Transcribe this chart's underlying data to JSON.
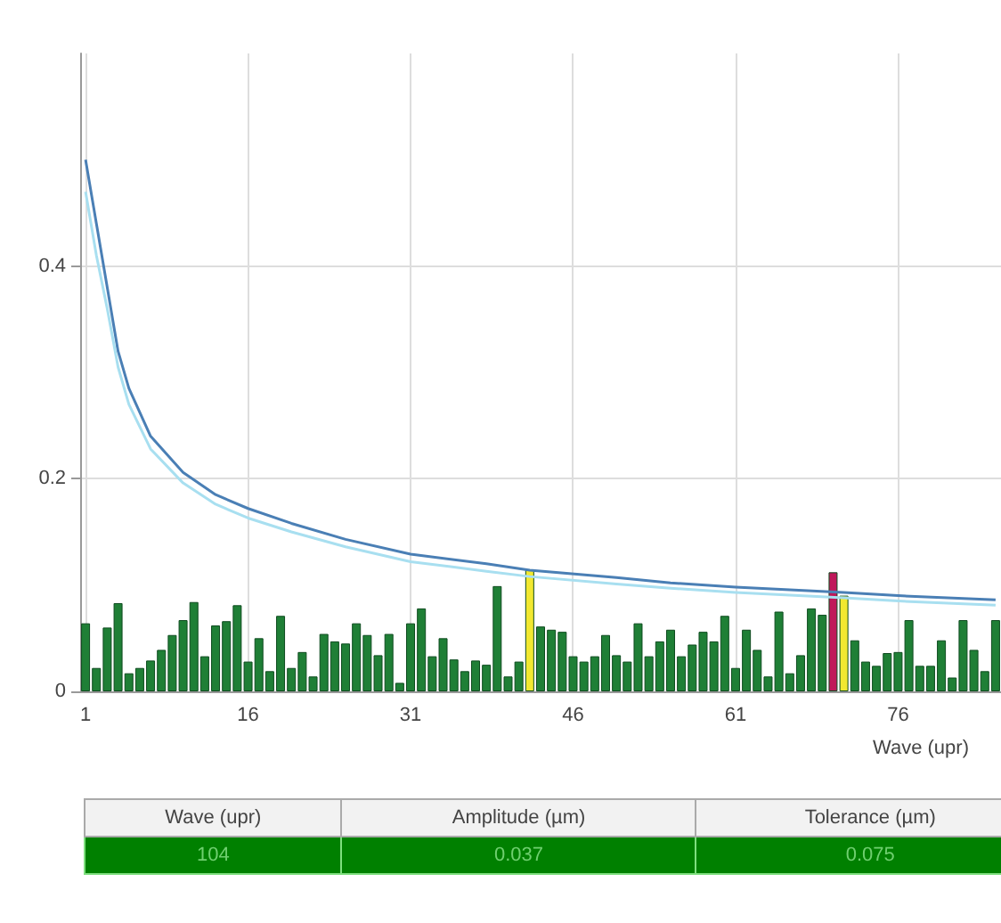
{
  "chart_data": {
    "type": "bar",
    "xlabel": "Wave (upr)",
    "x": [
      1,
      2,
      3,
      4,
      5,
      6,
      7,
      8,
      9,
      10,
      11,
      12,
      13,
      14,
      15,
      16,
      17,
      18,
      19,
      20,
      21,
      22,
      23,
      24,
      25,
      26,
      27,
      28,
      29,
      30,
      31,
      32,
      33,
      34,
      35,
      36,
      37,
      38,
      39,
      40,
      41,
      42,
      43,
      44,
      45,
      46,
      47,
      48,
      49,
      50,
      51,
      52,
      53,
      54,
      55,
      56,
      57,
      58,
      59,
      60,
      61,
      62,
      63,
      64,
      65,
      66,
      67,
      68,
      69,
      70,
      71,
      72,
      73,
      74,
      75,
      76,
      77,
      78,
      79,
      80,
      81,
      82,
      83,
      84,
      85
    ],
    "series": [
      {
        "values": [
          0.064,
          0.022,
          0.06,
          0.083,
          0.017,
          0.022,
          0.029,
          0.039,
          0.053,
          0.067,
          0.084,
          0.033,
          0.062,
          0.066,
          0.081,
          0.028,
          0.05,
          0.019,
          0.071,
          0.022,
          0.037,
          0.014,
          0.054,
          0.047,
          0.045,
          0.064,
          0.053,
          0.034,
          0.054,
          0.008,
          0.064,
          0.078,
          0.033,
          0.05,
          0.03,
          0.019,
          0.029,
          0.025,
          0.099,
          0.014,
          0.028,
          0.114,
          0.061,
          0.058,
          0.056,
          0.033,
          0.028,
          0.033,
          0.053,
          0.034,
          0.028,
          0.064,
          0.033,
          0.047,
          0.058,
          0.033,
          0.044,
          0.056,
          0.047,
          0.071,
          0.022,
          0.058,
          0.039,
          0.014,
          0.075,
          0.017,
          0.034,
          0.078,
          0.072,
          0.112,
          0.09,
          0.048,
          0.028,
          0.024,
          0.036,
          0.037,
          0.067,
          0.024,
          0.024,
          0.048,
          0.013,
          0.067,
          0.039,
          0.019,
          0.067
        ],
        "colors": [
          "#1f7f36",
          "#1f7f36",
          "#1f7f36",
          "#1f7f36",
          "#1f7f36",
          "#1f7f36",
          "#1f7f36",
          "#1f7f36",
          "#1f7f36",
          "#1f7f36",
          "#1f7f36",
          "#1f7f36",
          "#1f7f36",
          "#1f7f36",
          "#1f7f36",
          "#1f7f36",
          "#1f7f36",
          "#1f7f36",
          "#1f7f36",
          "#1f7f36",
          "#1f7f36",
          "#1f7f36",
          "#1f7f36",
          "#1f7f36",
          "#1f7f36",
          "#1f7f36",
          "#1f7f36",
          "#1f7f36",
          "#1f7f36",
          "#1f7f36",
          "#1f7f36",
          "#1f7f36",
          "#1f7f36",
          "#1f7f36",
          "#1f7f36",
          "#1f7f36",
          "#1f7f36",
          "#1f7f36",
          "#1f7f36",
          "#1f7f36",
          "#1f7f36",
          "#f2e830",
          "#1f7f36",
          "#1f7f36",
          "#1f7f36",
          "#1f7f36",
          "#1f7f36",
          "#1f7f36",
          "#1f7f36",
          "#1f7f36",
          "#1f7f36",
          "#1f7f36",
          "#1f7f36",
          "#1f7f36",
          "#1f7f36",
          "#1f7f36",
          "#1f7f36",
          "#1f7f36",
          "#1f7f36",
          "#1f7f36",
          "#1f7f36",
          "#1f7f36",
          "#1f7f36",
          "#1f7f36",
          "#1f7f36",
          "#1f7f36",
          "#1f7f36",
          "#1f7f36",
          "#1f7f36",
          "#c0185a",
          "#f2e830",
          "#1f7f36",
          "#1f7f36",
          "#1f7f36",
          "#1f7f36",
          "#1f7f36",
          "#1f7f36",
          "#1f7f36",
          "#1f7f36",
          "#1f7f36",
          "#1f7f36",
          "#1f7f36",
          "#1f7f36",
          "#1f7f36",
          "#1f7f36"
        ]
      },
      {
        "type": "line",
        "color": "#4a7fb5",
        "x": [
          1,
          2,
          3,
          4,
          5,
          7,
          10,
          13,
          16,
          20,
          25,
          31,
          38,
          42,
          50,
          55,
          61,
          71,
          76,
          85
        ],
        "values": [
          0.5,
          0.44,
          0.38,
          0.32,
          0.285,
          0.24,
          0.206,
          0.185,
          0.172,
          0.158,
          0.143,
          0.129,
          0.12,
          0.114,
          0.107,
          0.102,
          0.098,
          0.093,
          0.09,
          0.086
        ]
      },
      {
        "type": "line",
        "color": "#a8dff0",
        "x": [
          1,
          2,
          3,
          4,
          5,
          7,
          10,
          13,
          16,
          20,
          25,
          31,
          38,
          42,
          50,
          55,
          61,
          71,
          76,
          85
        ],
        "values": [
          0.47,
          0.41,
          0.36,
          0.305,
          0.27,
          0.228,
          0.196,
          0.176,
          0.163,
          0.15,
          0.136,
          0.122,
          0.113,
          0.108,
          0.101,
          0.097,
          0.093,
          0.088,
          0.085,
          0.081
        ]
      }
    ],
    "xlim": [
      0.5,
      85.5
    ],
    "xticks": [
      1,
      16,
      31,
      46,
      61,
      76
    ],
    "ylim": [
      0,
      0.6
    ],
    "yticks": [
      0,
      0.2,
      0.4
    ],
    "grid": true,
    "marker": "none",
    "line_style": "solid",
    "annotations": [
      "Wave (upr)",
      "Amplitude (µm)",
      "Tolerance (µm)",
      "104",
      "0.037",
      "0.075"
    ]
  }
}
